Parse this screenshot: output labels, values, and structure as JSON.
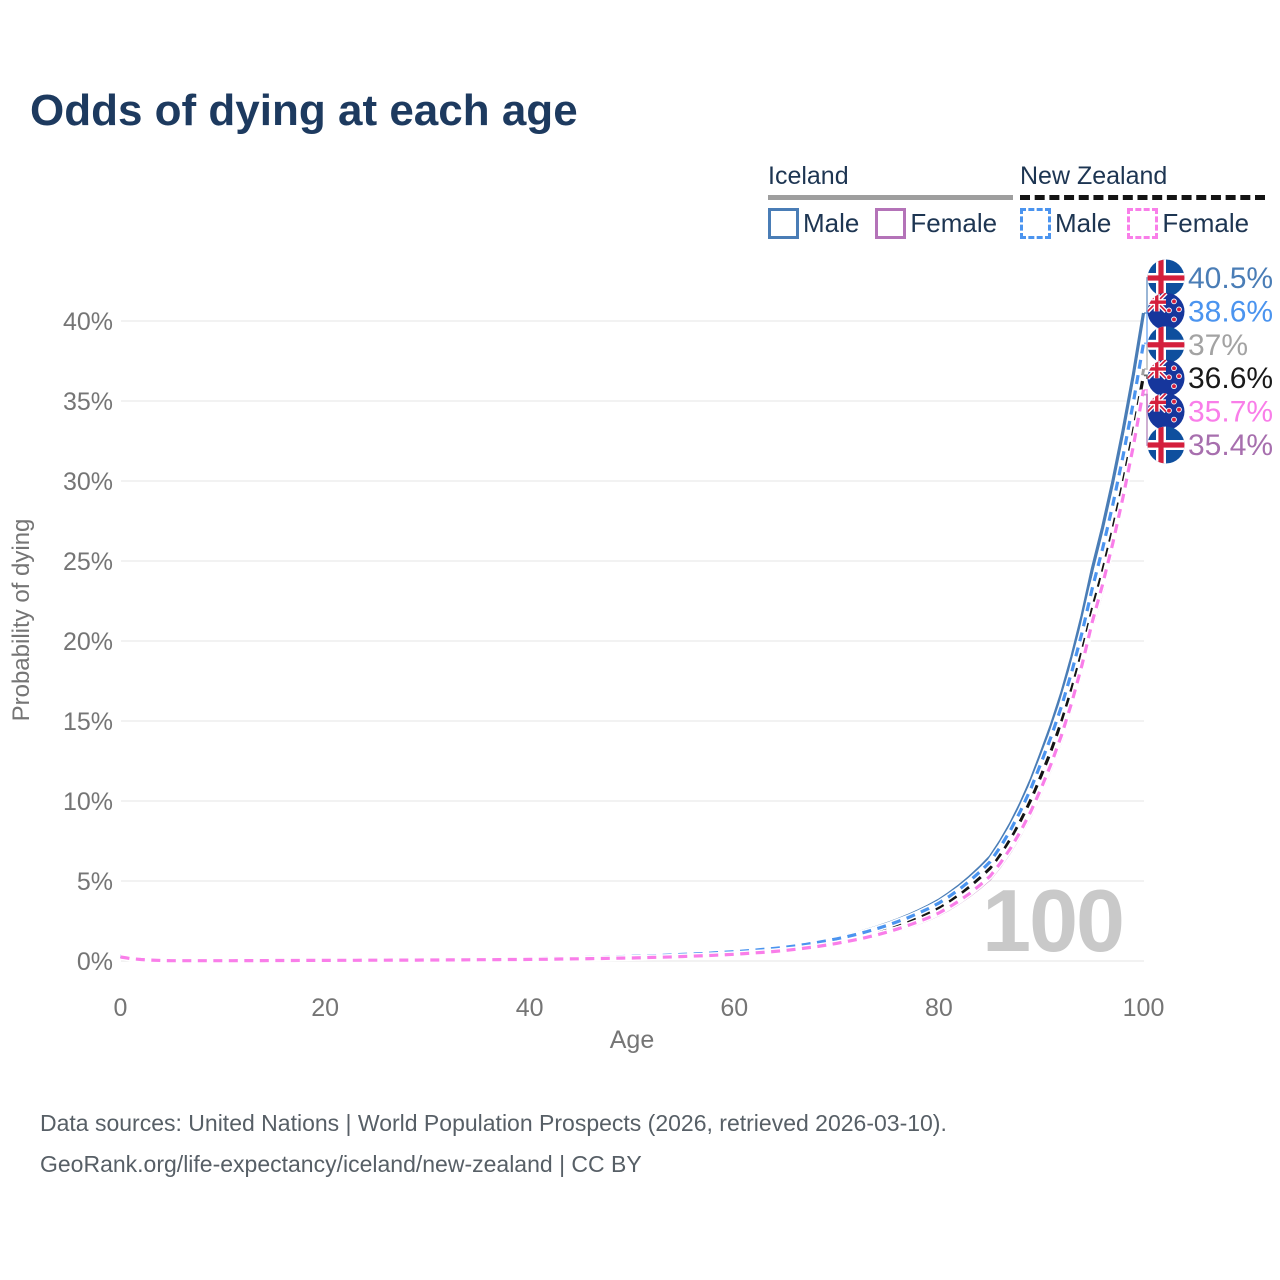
{
  "title": "Odds of dying at each age",
  "legend": {
    "groups": [
      {
        "name": "Iceland",
        "line_style": "solid",
        "line_color": "#9e9e9e",
        "items": [
          {
            "label": "Male",
            "color": "#4a7db6",
            "dash": "solid"
          },
          {
            "label": "Female",
            "color": "#b473b8",
            "dash": "solid"
          }
        ]
      },
      {
        "name": "New Zealand",
        "line_style": "dashed",
        "line_color": "#141414",
        "items": [
          {
            "label": "Male",
            "color": "#4b94ef",
            "dash": "dashed"
          },
          {
            "label": "Female",
            "color": "#f97ee9",
            "dash": "dashed"
          }
        ]
      }
    ]
  },
  "chart_data": {
    "type": "line",
    "title": "Odds of dying at each age",
    "xlabel": "Age",
    "ylabel": "Probability of dying",
    "x_ticks": [
      0,
      20,
      40,
      60,
      80,
      100
    ],
    "y_ticks": [
      "0%",
      "5%",
      "10%",
      "15%",
      "20%",
      "25%",
      "30%",
      "35%",
      "40%"
    ],
    "y_tick_values": [
      0,
      5,
      10,
      15,
      20,
      25,
      30,
      35,
      40
    ],
    "xlim": [
      0,
      100
    ],
    "ylim": [
      0,
      43
    ],
    "grid": "horizontal",
    "age_watermark": "100",
    "ages": [
      0,
      5,
      10,
      15,
      20,
      25,
      30,
      35,
      40,
      45,
      50,
      55,
      60,
      65,
      70,
      75,
      80,
      85,
      90,
      95,
      100
    ],
    "series": [
      {
        "id": "iceland_male",
        "country": "Iceland",
        "sex": "Male",
        "color": "#4a7db6",
        "dash": "solid",
        "values": [
          0.27,
          0.03,
          0.03,
          0.05,
          0.07,
          0.08,
          0.1,
          0.13,
          0.17,
          0.22,
          0.3,
          0.42,
          0.6,
          0.9,
          1.45,
          2.35,
          3.8,
          6.5,
          13.0,
          24.5,
          40.5
        ]
      },
      {
        "id": "iceland_all",
        "country": "Iceland",
        "sex": "All",
        "color": "#9f9f9f",
        "dash": "solid",
        "values": [
          0.24,
          0.02,
          0.02,
          0.04,
          0.06,
          0.07,
          0.08,
          0.1,
          0.13,
          0.18,
          0.25,
          0.35,
          0.52,
          0.79,
          1.28,
          2.1,
          3.42,
          5.9,
          11.8,
          22.3,
          37.0
        ]
      },
      {
        "id": "iceland_female",
        "country": "Iceland",
        "sex": "Female",
        "color": "#b473b8",
        "dash": "solid",
        "values": [
          0.21,
          0.02,
          0.02,
          0.03,
          0.04,
          0.04,
          0.05,
          0.07,
          0.09,
          0.13,
          0.18,
          0.26,
          0.4,
          0.62,
          1.05,
          1.75,
          2.9,
          5.15,
          10.6,
          20.9,
          35.4
        ]
      },
      {
        "id": "nz_all",
        "country": "New Zealand",
        "sex": "All",
        "color": "#141414",
        "dash": "dashed",
        "values": [
          0.28,
          0.03,
          0.02,
          0.04,
          0.06,
          0.07,
          0.08,
          0.1,
          0.13,
          0.18,
          0.24,
          0.34,
          0.5,
          0.77,
          1.25,
          2.05,
          3.35,
          5.8,
          11.6,
          22.0,
          36.6
        ]
      },
      {
        "id": "nz_male",
        "country": "New Zealand",
        "sex": "Male",
        "color": "#4b94ef",
        "dash": "dashed",
        "values": [
          0.31,
          0.03,
          0.03,
          0.05,
          0.08,
          0.09,
          0.1,
          0.13,
          0.17,
          0.22,
          0.29,
          0.41,
          0.58,
          0.86,
          1.38,
          2.24,
          3.62,
          6.2,
          12.4,
          23.3,
          38.6
        ]
      },
      {
        "id": "nz_female",
        "country": "New Zealand",
        "sex": "Female",
        "color": "#f97ee9",
        "dash": "dashed",
        "values": [
          0.25,
          0.02,
          0.02,
          0.03,
          0.04,
          0.05,
          0.06,
          0.08,
          0.1,
          0.14,
          0.19,
          0.28,
          0.42,
          0.66,
          1.1,
          1.82,
          3.0,
          5.3,
          10.8,
          21.2,
          35.7
        ]
      }
    ],
    "end_labels": [
      {
        "flag": "iceland",
        "label": "40.5%",
        "value": 40.5,
        "color": "#4a7db6",
        "series": "iceland_male"
      },
      {
        "flag": "new-zealand",
        "label": "38.6%",
        "value": 38.6,
        "color": "#4b94ef",
        "series": "nz_male"
      },
      {
        "flag": "iceland",
        "label": "37%",
        "value": 37.0,
        "color": "#a3a3a3",
        "series": "iceland_all"
      },
      {
        "flag": "new-zealand",
        "label": "36.6%",
        "value": 36.6,
        "color": "#1a1a1a",
        "series": "nz_all"
      },
      {
        "flag": "new-zealand",
        "label": "35.7%",
        "value": 35.7,
        "color": "#f97ee9",
        "series": "nz_female"
      },
      {
        "flag": "iceland",
        "label": "35.4%",
        "value": 35.4,
        "color": "#a76fae",
        "series": "iceland_female"
      }
    ]
  },
  "footer": {
    "line1": "Data sources: United Nations | World Population Prospects (2026, retrieved 2026-03-10).",
    "line2": "GeoRank.org/life-expectancy/iceland/new-zealand | CC BY"
  }
}
